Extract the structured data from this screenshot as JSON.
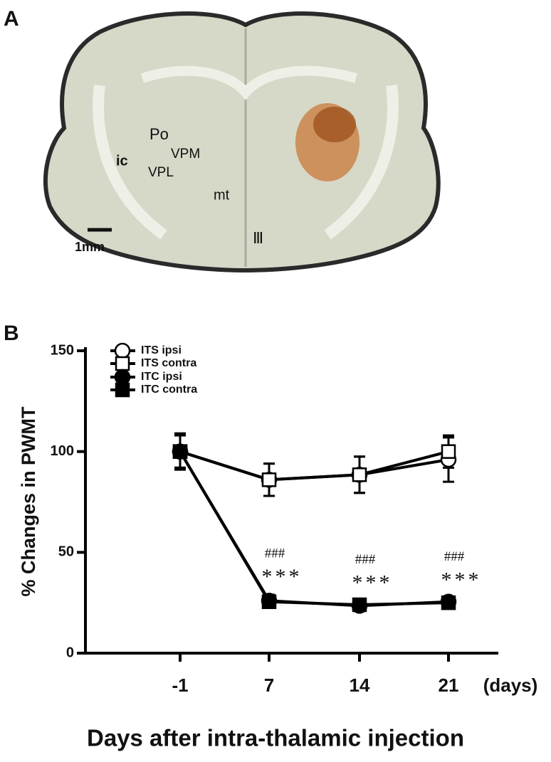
{
  "panel_a": {
    "label": "A",
    "regions": [
      "Po",
      "VPM",
      "VPL",
      "ic",
      "mt",
      "Ⅲ"
    ],
    "scale_bar": "1mm"
  },
  "chart_data": {
    "type": "line",
    "panel_label": "B",
    "xlabel": "Days after intra-thalamic injection",
    "x_unit": "(days)",
    "ylabel": "% Changes in PWMT",
    "categories": [
      "-1",
      "7",
      "14",
      "21"
    ],
    "ylim": [
      0,
      150
    ],
    "yticks": [
      0,
      50,
      100,
      150
    ],
    "series": [
      {
        "name": "ITS ipsi",
        "color": "#000000",
        "marker": "open-circle",
        "values": [
          100,
          86,
          88.5,
          96
        ],
        "errors": [
          8,
          8,
          9,
          11
        ]
      },
      {
        "name": "ITS contra",
        "color": "#000000",
        "marker": "open-square",
        "values": [
          100,
          86,
          88.5,
          100
        ],
        "errors": [
          8,
          8,
          9,
          8
        ]
      },
      {
        "name": "ITC ipsi",
        "color": "#000000",
        "marker": "filled-circle",
        "values": [
          100,
          26,
          23.5,
          25.5
        ],
        "errors": [
          9,
          3,
          2,
          2
        ]
      },
      {
        "name": "ITC contra",
        "color": "#000000",
        "marker": "filled-square",
        "values": [
          100,
          25.5,
          24,
          25
        ],
        "errors": [
          8,
          3,
          2,
          2
        ]
      }
    ],
    "annotations": [
      null,
      [
        "###",
        "***"
      ],
      [
        "###",
        "***"
      ],
      [
        "###",
        "***"
      ]
    ],
    "legend": "upper left"
  }
}
